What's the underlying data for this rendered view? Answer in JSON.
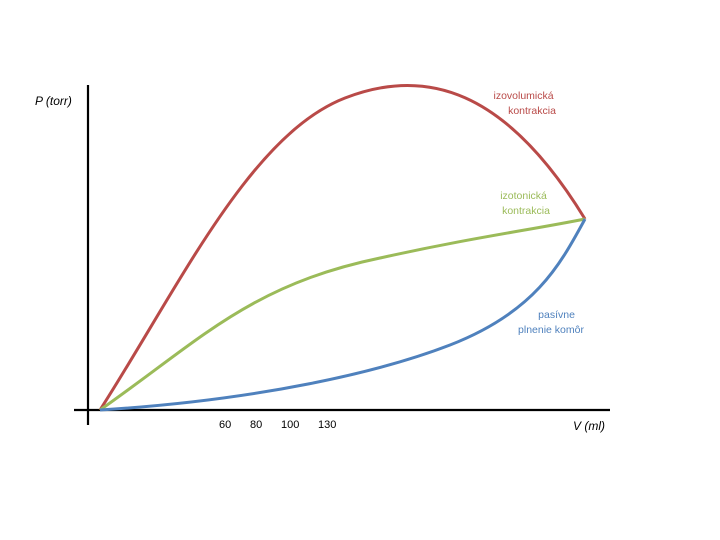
{
  "y_axis_label": "P (torr)",
  "x_axis_label": "V (ml)",
  "tick_labels": [
    "60",
    "80",
    "100",
    "130"
  ],
  "curves": {
    "isovolumic": {
      "label_lines": [
        "izovolumická",
        "kontrakcia"
      ],
      "color": "#b94a48"
    },
    "isotonic": {
      "label_lines": [
        "izotonická",
        "kontrakcia"
      ],
      "color": "#9bbb59"
    },
    "passive": {
      "label_lines": [
        "pasívne",
        "plnenie komôr"
      ],
      "color": "#4f81bd"
    }
  },
  "axis_color": "#000000"
}
